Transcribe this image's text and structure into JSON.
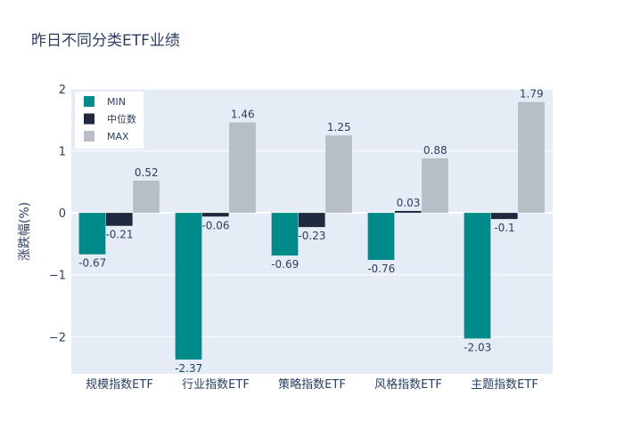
{
  "chart_data": {
    "type": "bar",
    "title": "昨日不同分类ETF业绩",
    "ylabel": "涨跌幅(%)",
    "xlabel": "",
    "categories": [
      "规模指数ETF",
      "行业指数ETF",
      "策略指数ETF",
      "风格指数ETF",
      "主题指数ETF"
    ],
    "series": [
      {
        "name": "MIN",
        "color": "#008b8b",
        "values": [
          -0.67,
          -2.37,
          -0.69,
          -0.76,
          -2.03
        ]
      },
      {
        "name": "中位数",
        "color": "#1f2a40",
        "values": [
          -0.21,
          -0.06,
          -0.23,
          0.03,
          -0.1
        ]
      },
      {
        "name": "MAX",
        "color": "#b8bec6",
        "values": [
          0.52,
          1.46,
          1.25,
          0.88,
          1.79
        ]
      }
    ],
    "ylim": [
      -2.6,
      2.0
    ],
    "yticks": [
      -2,
      -1,
      0,
      1,
      2
    ],
    "ytick_labels": [
      "−2",
      "−1",
      "0",
      "1",
      "2"
    ],
    "grid": true,
    "legend_position": "top-left",
    "plot_background": "#e5ecf6"
  }
}
